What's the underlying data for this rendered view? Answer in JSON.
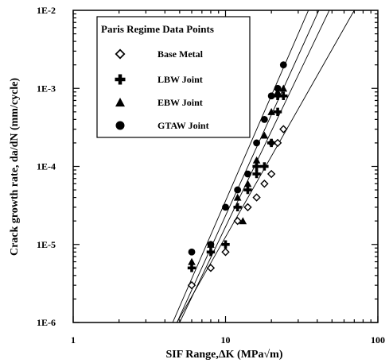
{
  "chart_data": {
    "type": "scatter",
    "title": "",
    "xlabel": "SIF Range,ΔK (MPa√m)",
    "ylabel": "Crack growth rate, da/dN (mm/cycle)",
    "x_scale": "log",
    "y_scale": "log",
    "xlim": [
      1,
      100
    ],
    "ylim": [
      1e-06,
      0.01
    ],
    "x_tick_labels": [
      "1",
      "10",
      "100"
    ],
    "y_tick_labels": [
      "1E-6",
      "1E-5",
      "1E-4",
      "1E-3",
      "1E-2"
    ],
    "grid": false,
    "legend": {
      "title": "Paris Regime Data Points",
      "placement": "top-left"
    },
    "series": [
      {
        "name": "Base Metal",
        "marker": "diamond-open",
        "points": [
          {
            "x": 6,
            "y": 3e-06
          },
          {
            "x": 8,
            "y": 5e-06
          },
          {
            "x": 10,
            "y": 8e-06
          },
          {
            "x": 12,
            "y": 2e-05
          },
          {
            "x": 14,
            "y": 3e-05
          },
          {
            "x": 16,
            "y": 4e-05
          },
          {
            "x": 18,
            "y": 6e-05
          },
          {
            "x": 20,
            "y": 8e-05
          },
          {
            "x": 20,
            "y": 0.0002
          },
          {
            "x": 22,
            "y": 0.0002
          },
          {
            "x": 24,
            "y": 0.0003
          }
        ]
      },
      {
        "name": "LBW Joint",
        "marker": "plus",
        "points": [
          {
            "x": 6,
            "y": 5e-06
          },
          {
            "x": 8,
            "y": 8e-06
          },
          {
            "x": 10,
            "y": 1e-05
          },
          {
            "x": 12,
            "y": 3e-05
          },
          {
            "x": 14,
            "y": 5e-05
          },
          {
            "x": 16,
            "y": 8e-05
          },
          {
            "x": 16,
            "y": 0.0001
          },
          {
            "x": 18,
            "y": 0.0001
          },
          {
            "x": 20,
            "y": 0.0002
          },
          {
            "x": 22,
            "y": 0.0005
          },
          {
            "x": 22,
            "y": 0.0008
          },
          {
            "x": 24,
            "y": 0.0008
          }
        ]
      },
      {
        "name": "EBW Joint",
        "marker": "triangle",
        "points": [
          {
            "x": 6,
            "y": 6e-06
          },
          {
            "x": 8,
            "y": 1e-05
          },
          {
            "x": 12,
            "y": 4e-05
          },
          {
            "x": 13,
            "y": 2e-05
          },
          {
            "x": 14,
            "y": 6e-05
          },
          {
            "x": 16,
            "y": 0.00012
          },
          {
            "x": 18,
            "y": 0.00025
          },
          {
            "x": 20,
            "y": 0.0005
          },
          {
            "x": 22,
            "y": 0.0009
          },
          {
            "x": 24,
            "y": 0.001
          }
        ]
      },
      {
        "name": "GTAW Joint",
        "marker": "circle",
        "points": [
          {
            "x": 6,
            "y": 8e-06
          },
          {
            "x": 8,
            "y": 1e-05
          },
          {
            "x": 10,
            "y": 3e-05
          },
          {
            "x": 12,
            "y": 5e-05
          },
          {
            "x": 14,
            "y": 8e-05
          },
          {
            "x": 16,
            "y": 0.0002
          },
          {
            "x": 18,
            "y": 0.0004
          },
          {
            "x": 20,
            "y": 0.0008
          },
          {
            "x": 22,
            "y": 0.001
          },
          {
            "x": 24,
            "y": 0.002
          }
        ]
      }
    ],
    "fit_lines": [
      {
        "points": [
          {
            "x": 4.5,
            "y": 1e-06
          },
          {
            "x": 35,
            "y": 0.01
          }
        ]
      },
      {
        "points": [
          {
            "x": 4.8,
            "y": 1e-06
          },
          {
            "x": 41,
            "y": 0.01
          }
        ]
      },
      {
        "points": [
          {
            "x": 5.0,
            "y": 1e-06
          },
          {
            "x": 48,
            "y": 0.01
          }
        ]
      },
      {
        "points": [
          {
            "x": 4.8,
            "y": 1e-06
          },
          {
            "x": 70,
            "y": 0.01
          }
        ]
      }
    ]
  }
}
